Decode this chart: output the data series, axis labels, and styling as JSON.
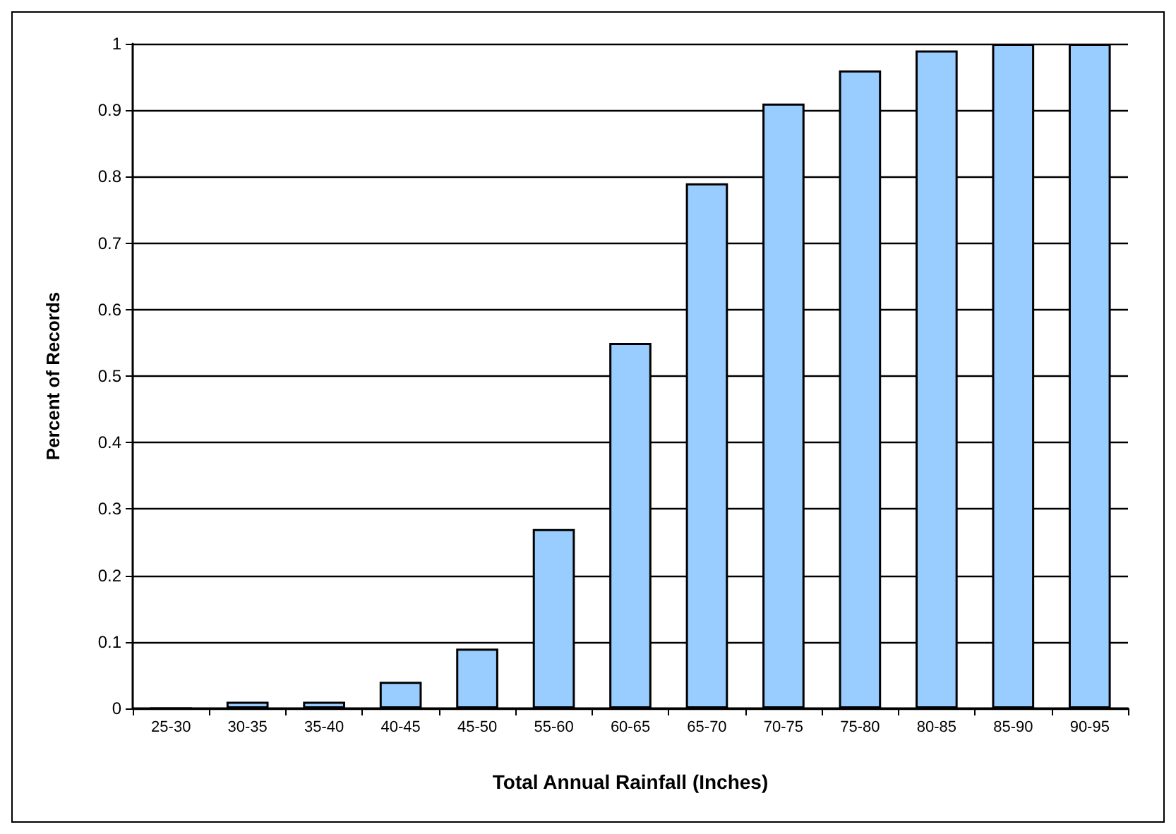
{
  "chart_data": {
    "type": "bar",
    "xlabel": "Total Annual Rainfall (Inches)",
    "ylabel": "Percent of Records",
    "categories": [
      "25-30",
      "30-35",
      "35-40",
      "40-45",
      "45-50",
      "55-60",
      "60-65",
      "65-70",
      "70-75",
      "75-80",
      "80-85",
      "85-90",
      "90-95"
    ],
    "values": [
      0,
      0.01,
      0.01,
      0.04,
      0.09,
      0.27,
      0.55,
      0.79,
      0.91,
      0.96,
      0.99,
      1,
      1
    ],
    "color": "#99ccff",
    "ylim": [
      0,
      1
    ],
    "yticks": [
      0,
      0.1,
      0.2,
      0.3,
      0.4,
      0.5,
      0.6,
      0.7,
      0.8,
      0.9,
      1
    ],
    "grid": "y"
  }
}
